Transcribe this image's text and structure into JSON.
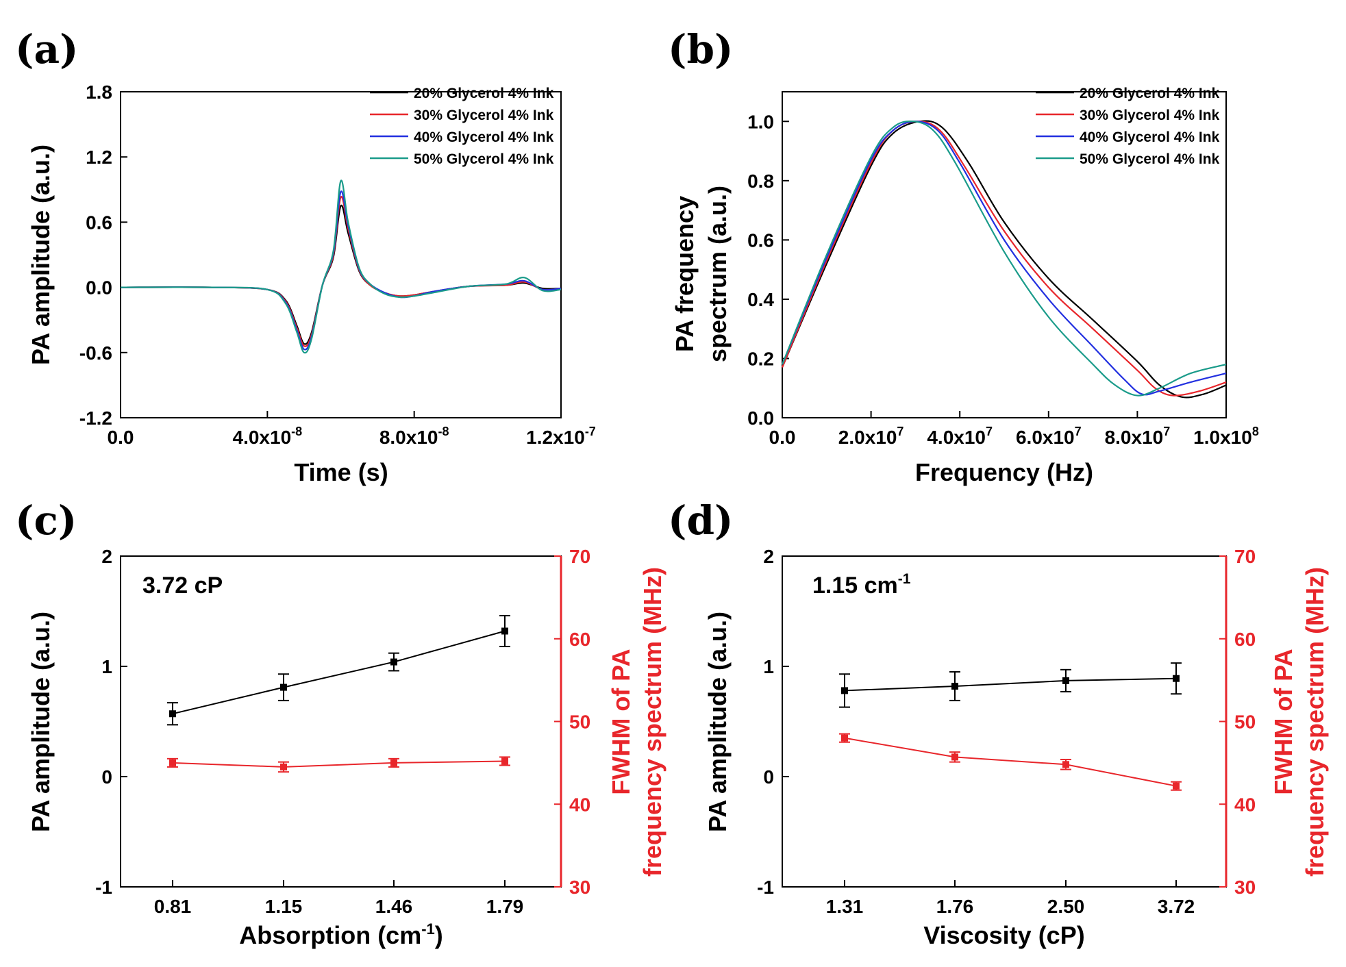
{
  "chart_data": [
    {
      "id": "a",
      "panel_label": "(a)",
      "type": "line",
      "xlabel": "Time (s)",
      "ylabel": "PA amplitude (a.u.)",
      "xlim": [
        0,
        1.2e-07
      ],
      "ylim": [
        -1.2,
        1.8
      ],
      "xticks": [
        {
          "value": 0,
          "base": "0.0",
          "exp": ""
        },
        {
          "value": 4e-08,
          "base": "4.0x10",
          "exp": "-8"
        },
        {
          "value": 8e-08,
          "base": "8.0x10",
          "exp": "-8"
        },
        {
          "value": 1.2e-07,
          "base": "1.2x10",
          "exp": "-7"
        }
      ],
      "yticks": [
        {
          "value": -1.2,
          "label": "-1.2"
        },
        {
          "value": -0.6,
          "label": "-0.6"
        },
        {
          "value": 0,
          "label": "0.0"
        },
        {
          "value": 0.6,
          "label": "0.6"
        },
        {
          "value": 1.2,
          "label": "1.2"
        },
        {
          "value": 1.8,
          "label": "1.8"
        }
      ],
      "legend_position": "top-right",
      "series": [
        {
          "name": "20% Glycerol 4% Ink",
          "color": "#000000",
          "x": [
            0,
            2.5e-08,
            4e-08,
            4.5e-08,
            4.8e-08,
            5e-08,
            5.2e-08,
            5.5e-08,
            5.8e-08,
            6e-08,
            6.2e-08,
            6.5e-08,
            6.8e-08,
            7.2e-08,
            7.6e-08,
            8e-08,
            8.5e-08,
            9.5e-08,
            1.05e-07,
            1.1e-07,
            1.15e-07,
            1.2e-07
          ],
          "y": [
            0.0,
            0.0,
            -0.02,
            -0.12,
            -0.35,
            -0.52,
            -0.42,
            0.02,
            0.28,
            0.75,
            0.5,
            0.15,
            0.02,
            -0.05,
            -0.08,
            -0.07,
            -0.04,
            0.01,
            0.02,
            0.04,
            -0.01,
            -0.01
          ]
        },
        {
          "name": "30% Glycerol 4% Ink",
          "color": "#e8262b",
          "x": [
            0,
            2.5e-08,
            4e-08,
            4.5e-08,
            4.8e-08,
            5e-08,
            5.2e-08,
            5.5e-08,
            5.8e-08,
            6e-08,
            6.2e-08,
            6.5e-08,
            6.8e-08,
            7.2e-08,
            7.6e-08,
            8e-08,
            8.5e-08,
            9.5e-08,
            1.05e-07,
            1.1e-07,
            1.15e-07,
            1.2e-07
          ],
          "y": [
            0.0,
            0.0,
            -0.02,
            -0.13,
            -0.37,
            -0.54,
            -0.44,
            0.02,
            0.3,
            0.83,
            0.54,
            0.16,
            0.02,
            -0.05,
            -0.08,
            -0.07,
            -0.04,
            0.01,
            0.02,
            0.05,
            -0.02,
            -0.01
          ]
        },
        {
          "name": "40% Glycerol 4% Ink",
          "color": "#2230e0",
          "x": [
            0,
            2.5e-08,
            4e-08,
            4.5e-08,
            4.8e-08,
            5e-08,
            5.2e-08,
            5.5e-08,
            5.8e-08,
            6e-08,
            6.2e-08,
            6.5e-08,
            6.8e-08,
            7.2e-08,
            7.6e-08,
            8e-08,
            8.5e-08,
            9.5e-08,
            1.05e-07,
            1.1e-07,
            1.15e-07,
            1.2e-07
          ],
          "y": [
            0.0,
            0.0,
            -0.02,
            -0.14,
            -0.39,
            -0.57,
            -0.46,
            0.02,
            0.32,
            0.88,
            0.57,
            0.17,
            0.03,
            -0.05,
            -0.09,
            -0.08,
            -0.04,
            0.01,
            0.03,
            0.06,
            -0.02,
            -0.01
          ]
        },
        {
          "name": "50% Glycerol 4% Ink",
          "color": "#1a9b8a",
          "x": [
            0,
            2.5e-08,
            4e-08,
            4.5e-08,
            4.8e-08,
            5e-08,
            5.2e-08,
            5.5e-08,
            5.8e-08,
            6e-08,
            6.2e-08,
            6.5e-08,
            6.8e-08,
            7.2e-08,
            7.6e-08,
            8e-08,
            8.5e-08,
            9.5e-08,
            1.05e-07,
            1.1e-07,
            1.15e-07,
            1.2e-07
          ],
          "y": [
            0.0,
            0.0,
            -0.02,
            -0.15,
            -0.41,
            -0.6,
            -0.48,
            0.02,
            0.34,
            0.98,
            0.6,
            0.18,
            0.03,
            -0.06,
            -0.09,
            -0.08,
            -0.05,
            0.01,
            0.03,
            0.09,
            -0.03,
            -0.02
          ]
        }
      ]
    },
    {
      "id": "b",
      "panel_label": "(b)",
      "type": "line",
      "xlabel": "Frequency (Hz)",
      "ylabel": "PA frequency spectrum (a.u.)",
      "ylabel_lines": [
        "PA frequency",
        "spectrum (a.u.)"
      ],
      "xlim": [
        0,
        100000000.0
      ],
      "ylim": [
        0,
        1.1
      ],
      "xticks": [
        {
          "value": 0,
          "base": "0.0",
          "exp": ""
        },
        {
          "value": 20000000.0,
          "base": "2.0x10",
          "exp": "7"
        },
        {
          "value": 40000000.0,
          "base": "4.0x10",
          "exp": "7"
        },
        {
          "value": 60000000.0,
          "base": "6.0x10",
          "exp": "7"
        },
        {
          "value": 80000000.0,
          "base": "8.0x10",
          "exp": "7"
        },
        {
          "value": 100000000.0,
          "base": "1.0x10",
          "exp": "8"
        }
      ],
      "yticks": [
        {
          "value": 0,
          "label": "0.0"
        },
        {
          "value": 0.2,
          "label": "0.2"
        },
        {
          "value": 0.4,
          "label": "0.4"
        },
        {
          "value": 0.6,
          "label": "0.6"
        },
        {
          "value": 0.8,
          "label": "0.8"
        },
        {
          "value": 1.0,
          "label": "1.0"
        }
      ],
      "legend_position": "top-right",
      "series": [
        {
          "name": "20% Glycerol 4% Ink",
          "color": "#000000",
          "x": [
            0,
            10000000.0,
            20000000.0,
            25000000.0,
            31000000.0,
            36000000.0,
            42000000.0,
            50000000.0,
            60000000.0,
            70000000.0,
            80000000.0,
            85000000.0,
            90000000.0,
            95000000.0,
            100000000.0
          ],
          "y": [
            0.17,
            0.52,
            0.85,
            0.96,
            1.0,
            0.98,
            0.86,
            0.66,
            0.47,
            0.33,
            0.19,
            0.11,
            0.07,
            0.08,
            0.11
          ]
        },
        {
          "name": "30% Glycerol 4% Ink",
          "color": "#e8262b",
          "x": [
            0,
            10000000.0,
            20000000.0,
            25000000.0,
            30500000.0,
            35500000.0,
            41000000.0,
            50000000.0,
            60000000.0,
            70000000.0,
            80000000.0,
            84000000.0,
            88000000.0,
            94000000.0,
            100000000.0
          ],
          "y": [
            0.17,
            0.53,
            0.86,
            0.97,
            1.0,
            0.97,
            0.85,
            0.63,
            0.44,
            0.3,
            0.16,
            0.1,
            0.075,
            0.09,
            0.12
          ]
        },
        {
          "name": "40% Glycerol 4% Ink",
          "color": "#2230e0",
          "x": [
            0,
            10000000.0,
            20000000.0,
            25000000.0,
            30000000.0,
            35000000.0,
            40000000.0,
            50000000.0,
            60000000.0,
            70000000.0,
            77000000.0,
            81000000.0,
            85000000.0,
            92000000.0,
            100000000.0
          ],
          "y": [
            0.18,
            0.54,
            0.87,
            0.97,
            1.0,
            0.97,
            0.86,
            0.6,
            0.4,
            0.24,
            0.13,
            0.08,
            0.09,
            0.12,
            0.15
          ]
        },
        {
          "name": "50% Glycerol 4% Ink",
          "color": "#1a9b8a",
          "x": [
            0,
            10000000.0,
            20000000.0,
            25000000.0,
            29500000.0,
            34000000.0,
            39000000.0,
            50000000.0,
            60000000.0,
            70000000.0,
            75000000.0,
            80000000.0,
            85000000.0,
            92000000.0,
            100000000.0
          ],
          "y": [
            0.18,
            0.55,
            0.88,
            0.98,
            1.0,
            0.97,
            0.86,
            0.56,
            0.34,
            0.18,
            0.11,
            0.075,
            0.1,
            0.15,
            0.18
          ]
        }
      ]
    },
    {
      "id": "c",
      "panel_label": "(c)",
      "type": "line",
      "annotation": {
        "text": "3.72 cP",
        "sup": ""
      },
      "xlabel": "Absorption (cm",
      "xlabel_sup": "-1",
      "xlabel_suffix": ")",
      "ylabel": "PA amplitude (a.u.)",
      "y2label_lines": [
        "FWHM of PA",
        "frequency spectrum (MHz)"
      ],
      "categories": [
        "0.81",
        "1.15",
        "1.46",
        "1.79"
      ],
      "ylim": [
        -1,
        2
      ],
      "yticks": [
        {
          "value": -1,
          "label": "-1"
        },
        {
          "value": 0,
          "label": "0"
        },
        {
          "value": 1,
          "label": "1"
        },
        {
          "value": 2,
          "label": "2"
        }
      ],
      "y2lim": [
        30,
        70
      ],
      "y2ticks": [
        {
          "value": 30,
          "label": "30"
        },
        {
          "value": 40,
          "label": "40"
        },
        {
          "value": 50,
          "label": "50"
        },
        {
          "value": 60,
          "label": "60"
        },
        {
          "value": 70,
          "label": "70"
        }
      ],
      "series": [
        {
          "name": "PA amplitude",
          "axis": "left",
          "color": "#000000",
          "values": [
            0.57,
            0.81,
            1.04,
            1.32
          ],
          "errors": [
            0.1,
            0.12,
            0.08,
            0.14
          ]
        },
        {
          "name": "FWHM of PA frequency spectrum",
          "axis": "right",
          "color": "#e8262b",
          "values": [
            45.0,
            44.5,
            45.0,
            45.2
          ],
          "errors": [
            0.5,
            0.6,
            0.5,
            0.5
          ]
        }
      ]
    },
    {
      "id": "d",
      "panel_label": "(d)",
      "type": "line",
      "annotation": {
        "text": "1.15 cm",
        "sup": "-1"
      },
      "xlabel": "Viscosity (cP)",
      "xlabel_sup": "",
      "xlabel_suffix": "",
      "ylabel": "PA amplitude (a.u.)",
      "y2label_lines": [
        "FWHM of PA",
        "frequency spectrum (MHz)"
      ],
      "categories": [
        "1.31",
        "1.76",
        "2.50",
        "3.72"
      ],
      "ylim": [
        -1,
        2
      ],
      "yticks": [
        {
          "value": -1,
          "label": "-1"
        },
        {
          "value": 0,
          "label": "0"
        },
        {
          "value": 1,
          "label": "1"
        },
        {
          "value": 2,
          "label": "2"
        }
      ],
      "y2lim": [
        30,
        70
      ],
      "y2ticks": [
        {
          "value": 30,
          "label": "30"
        },
        {
          "value": 40,
          "label": "40"
        },
        {
          "value": 50,
          "label": "50"
        },
        {
          "value": 60,
          "label": "60"
        },
        {
          "value": 70,
          "label": "70"
        }
      ],
      "series": [
        {
          "name": "PA amplitude",
          "axis": "left",
          "color": "#000000",
          "values": [
            0.78,
            0.82,
            0.87,
            0.89
          ],
          "errors": [
            0.15,
            0.13,
            0.1,
            0.14
          ]
        },
        {
          "name": "FWHM of PA frequency spectrum",
          "axis": "right",
          "color": "#e8262b",
          "values": [
            48.0,
            45.7,
            44.8,
            42.2
          ],
          "errors": [
            0.5,
            0.6,
            0.6,
            0.5
          ]
        }
      ]
    }
  ],
  "colors": {
    "left_axis": "#000000",
    "right_axis": "#e8262b"
  }
}
